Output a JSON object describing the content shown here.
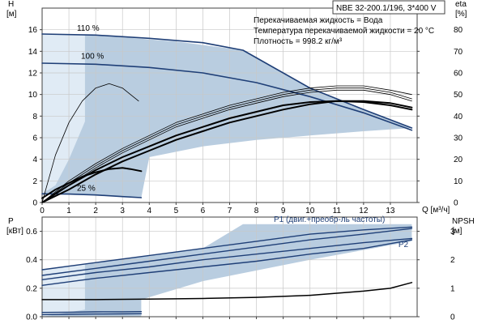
{
  "header": {
    "model": "NBE 32-200.1/196, 3*400 V",
    "liquid": "Перекачиваемая жидкость = Вода",
    "temperature": "Температура перекачиваемой жидкости = 20 °C",
    "density": "Плотность = 998.2 кг/м³"
  },
  "chart_data": [
    {
      "type": "line",
      "name": "performance",
      "xlabel": "Q [м³/ч]",
      "ylabel_left": "H",
      "ylabel_left_unit": "[м]",
      "ylabel_right": "eta",
      "ylabel_right_unit": "[%]",
      "xlim": [
        0,
        14
      ],
      "ylim_left": [
        0,
        18
      ],
      "ylim_right": [
        0,
        90
      ],
      "x_ticks": [
        0,
        1,
        2,
        3,
        4,
        5,
        6,
        7,
        8,
        9,
        10,
        11,
        12,
        13
      ],
      "y_ticks_left": [
        0,
        2,
        4,
        6,
        8,
        10,
        12,
        14,
        16
      ],
      "y_ticks_right": [
        0,
        10,
        20,
        30,
        40,
        50,
        60,
        70,
        80
      ],
      "grid": true,
      "labels": {
        "h110": "110 %",
        "h100": "100 %",
        "h25": "25 %"
      },
      "series": [
        {
          "key": "h110",
          "axis": "left",
          "kind": "head",
          "x": [
            0,
            2,
            4,
            6,
            7.5,
            10,
            12,
            13.8
          ],
          "y": [
            15.6,
            15.5,
            15.2,
            14.8,
            14.1,
            10.6,
            8.6,
            6.9
          ]
        },
        {
          "key": "h100",
          "axis": "left",
          "kind": "head",
          "x": [
            0,
            2,
            4,
            6,
            8,
            10,
            12,
            13.8
          ],
          "y": [
            12.9,
            12.8,
            12.5,
            12.0,
            11.1,
            9.8,
            8.3,
            6.7
          ]
        },
        {
          "key": "h25",
          "axis": "left",
          "kind": "head",
          "x": [
            0,
            1,
            2,
            3,
            3.7
          ],
          "y": [
            0.8,
            0.78,
            0.7,
            0.55,
            0.45
          ]
        },
        {
          "key": "eta110",
          "axis": "right",
          "kind": "eta_thick",
          "x": [
            0,
            1,
            2,
            3,
            4,
            5,
            6,
            7,
            8,
            9,
            10,
            11,
            12,
            13,
            13.8
          ],
          "y": [
            0,
            8,
            15,
            21,
            26,
            31,
            35,
            39,
            42,
            45,
            46.5,
            47,
            47,
            46,
            44
          ]
        },
        {
          "key": "eta100",
          "axis": "right",
          "kind": "eta_thick",
          "x": [
            0,
            1,
            2,
            3,
            4,
            5,
            6,
            7,
            8,
            9,
            10,
            11,
            12,
            13,
            13.8
          ],
          "y": [
            0,
            6,
            13,
            19,
            24,
            29,
            33,
            37,
            40,
            43,
            45.5,
            47,
            46.5,
            45,
            43
          ]
        },
        {
          "key": "eta_a",
          "axis": "right",
          "kind": "eta_thin",
          "x": [
            0,
            1,
            2,
            3,
            4,
            5,
            6,
            7,
            8,
            9,
            10,
            11,
            12,
            13,
            13.8
          ],
          "y": [
            0,
            10,
            18,
            25,
            31,
            37,
            41,
            45,
            48,
            51,
            53,
            54,
            54,
            52,
            50
          ]
        },
        {
          "key": "eta_b",
          "axis": "right",
          "kind": "eta_thin",
          "x": [
            0,
            1,
            2,
            3,
            4,
            5,
            6,
            7,
            8,
            9,
            10,
            11,
            12,
            13,
            13.8
          ],
          "y": [
            0,
            9,
            17,
            24,
            30,
            36,
            40,
            44,
            47,
            50,
            52,
            53,
            53,
            51,
            48
          ]
        },
        {
          "key": "eta_c",
          "axis": "right",
          "kind": "eta_thin",
          "x": [
            0,
            1,
            2,
            3,
            4,
            5,
            6,
            7,
            8,
            9,
            10,
            11,
            12,
            13,
            13.8
          ],
          "y": [
            0,
            8,
            16,
            23,
            29,
            35,
            39,
            43,
            46,
            49,
            51,
            52,
            52,
            50,
            47
          ]
        },
        {
          "key": "eta_low1",
          "axis": "right",
          "kind": "eta_thin",
          "x": [
            0,
            0.5,
            1,
            1.5,
            2,
            2.5,
            3,
            3.3,
            3.6
          ],
          "y": [
            0,
            22,
            37,
            47,
            53,
            55,
            53,
            50,
            47
          ]
        },
        {
          "key": "eta_low2",
          "axis": "right",
          "kind": "eta_thick",
          "x": [
            0,
            0.5,
            1,
            1.5,
            2,
            2.5,
            3,
            3.3,
            3.7
          ],
          "y": [
            2,
            6,
            9,
            12,
            14,
            15.5,
            16,
            15.5,
            14.5
          ]
        }
      ],
      "envelope": [
        [
          0,
          15.6
        ],
        [
          1.5,
          15.5
        ],
        [
          3,
          15.3
        ],
        [
          5,
          14.9
        ],
        [
          7.5,
          14.1
        ],
        [
          10,
          10.6
        ],
        [
          12,
          8.6
        ],
        [
          13.8,
          6.9
        ],
        [
          12,
          6.6
        ],
        [
          10,
          6.2
        ],
        [
          8,
          5.8
        ],
        [
          6,
          5.2
        ],
        [
          4,
          4.2
        ],
        [
          3.7,
          0.45
        ],
        [
          2,
          0.7
        ],
        [
          0,
          0.8
        ]
      ],
      "envelope_light": [
        [
          0,
          15.6
        ],
        [
          1.6,
          15.5
        ],
        [
          1.6,
          7.5
        ],
        [
          1.0,
          4
        ],
        [
          0.5,
          1.6
        ],
        [
          0,
          0.8
        ]
      ]
    },
    {
      "type": "line",
      "name": "power_npsh",
      "ylabel_left": "P",
      "ylabel_left_unit": "[кВт]",
      "ylabel_right": "NPSH",
      "ylabel_right_unit": "[м]",
      "xlim": [
        0,
        14
      ],
      "ylim_left": [
        0,
        0.7
      ],
      "ylim_right": [
        0,
        3.5
      ],
      "y_ticks_left": [
        0,
        0.2,
        0.4,
        0.6
      ],
      "y_ticks_left_labels": [
        "0.0",
        "0.2",
        "0.4",
        "0.6"
      ],
      "y_ticks_right": [
        0,
        1,
        2,
        3
      ],
      "grid": true,
      "labels": {
        "p1": "P1 (двиг.+преобр-ль частоты)",
        "p2": "P2"
      },
      "series": [
        {
          "key": "p1_110",
          "axis": "left",
          "kind": "power",
          "x": [
            0,
            2,
            4,
            6,
            8,
            10,
            12,
            13.8
          ],
          "y": [
            0.33,
            0.38,
            0.43,
            0.48,
            0.53,
            0.58,
            0.61,
            0.63
          ]
        },
        {
          "key": "p1_100",
          "axis": "left",
          "kind": "power",
          "x": [
            0,
            2,
            4,
            6,
            8,
            10,
            12,
            13.8
          ],
          "y": [
            0.29,
            0.34,
            0.39,
            0.44,
            0.49,
            0.54,
            0.58,
            0.62
          ]
        },
        {
          "key": "p2_110",
          "axis": "left",
          "kind": "power",
          "x": [
            0,
            2,
            4,
            6,
            8,
            10,
            12,
            13.8
          ],
          "y": [
            0.26,
            0.31,
            0.35,
            0.4,
            0.44,
            0.48,
            0.52,
            0.55
          ]
        },
        {
          "key": "p2_100",
          "axis": "left",
          "kind": "power",
          "x": [
            0,
            2,
            4,
            6,
            8,
            10,
            12,
            13.8
          ],
          "y": [
            0.22,
            0.27,
            0.31,
            0.35,
            0.39,
            0.44,
            0.48,
            0.54
          ]
        },
        {
          "key": "p_low_a",
          "axis": "left",
          "kind": "power",
          "x": [
            0,
            1,
            2,
            3,
            3.7
          ],
          "y": [
            0.03,
            0.032,
            0.034,
            0.035,
            0.036
          ]
        },
        {
          "key": "p_low_b",
          "axis": "left",
          "kind": "power",
          "x": [
            0,
            1,
            2,
            3,
            3.7
          ],
          "y": [
            0.015,
            0.017,
            0.019,
            0.02,
            0.021
          ]
        },
        {
          "key": "npsh",
          "axis": "right",
          "kind": "npsh",
          "x": [
            0,
            2,
            4,
            6,
            8,
            10,
            12,
            13,
            13.8
          ],
          "y": [
            0.6,
            0.6,
            0.62,
            0.64,
            0.68,
            0.75,
            0.9,
            1.0,
            1.2
          ]
        }
      ],
      "envelope": [
        [
          0,
          0.33
        ],
        [
          2,
          0.38
        ],
        [
          4,
          0.43
        ],
        [
          6,
          0.48
        ],
        [
          7.5,
          0.65
        ],
        [
          13.8,
          0.65
        ],
        [
          13.8,
          0.53
        ],
        [
          10,
          0.4
        ],
        [
          6,
          0.25
        ],
        [
          3.7,
          0.12
        ],
        [
          3.7,
          0.0
        ],
        [
          0,
          0.0
        ]
      ],
      "envelope_light": [
        [
          0,
          0.33
        ],
        [
          1.6,
          0.37
        ],
        [
          1.6,
          0.05
        ],
        [
          0,
          0.0
        ]
      ]
    }
  ],
  "colors": {
    "curve_blue": "#1f3f77",
    "envelope_fill": "#b9cde0",
    "envelope_light": "#e0ebf5",
    "grid": "#c8c8c8",
    "axis": "#404040",
    "black": "#000000"
  }
}
